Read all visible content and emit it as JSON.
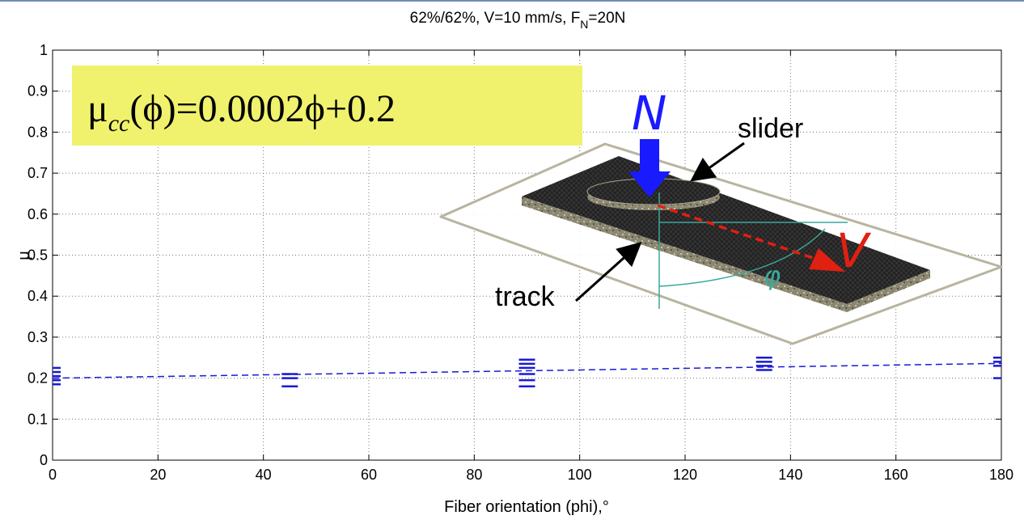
{
  "chart_data": {
    "type": "scatter",
    "title_main": "62%/62%, V=10 mm/s, F",
    "title_sub": "N",
    "title_tail": "=20N",
    "xlabel": "Fiber orientation (phi),°",
    "ylabel": "μ",
    "xlim": [
      0,
      180
    ],
    "ylim": [
      0,
      1
    ],
    "xticks": [
      "0",
      "20",
      "40",
      "60",
      "80",
      "100",
      "120",
      "140",
      "160",
      "180"
    ],
    "yticks": [
      "0",
      "0.1",
      "0.2",
      "0.3",
      "0.4",
      "0.5",
      "0.6",
      "0.7",
      "0.8",
      "0.9",
      "1"
    ],
    "grid": true,
    "series": [
      {
        "color": "#1a1ad6",
        "points": [
          {
            "x": 0,
            "y": 0.185
          },
          {
            "x": 0,
            "y": 0.195
          },
          {
            "x": 0,
            "y": 0.205
          },
          {
            "x": 0,
            "y": 0.215
          },
          {
            "x": 0,
            "y": 0.225
          },
          {
            "x": 45,
            "y": 0.18
          },
          {
            "x": 45,
            "y": 0.2
          },
          {
            "x": 45,
            "y": 0.21
          },
          {
            "x": 90,
            "y": 0.18
          },
          {
            "x": 90,
            "y": 0.195
          },
          {
            "x": 90,
            "y": 0.21
          },
          {
            "x": 90,
            "y": 0.225
          },
          {
            "x": 90,
            "y": 0.235
          },
          {
            "x": 90,
            "y": 0.245
          },
          {
            "x": 135,
            "y": 0.22
          },
          {
            "x": 135,
            "y": 0.23
          },
          {
            "x": 135,
            "y": 0.24
          },
          {
            "x": 135,
            "y": 0.25
          },
          {
            "x": 180,
            "y": 0.2
          },
          {
            "x": 180,
            "y": 0.23
          },
          {
            "x": 180,
            "y": 0.24
          },
          {
            "x": 180,
            "y": 0.25
          }
        ]
      },
      {
        "type": "line",
        "style": "dashed",
        "color": "#1a1ad6",
        "x": [
          0,
          180
        ],
        "y": [
          0.2,
          0.236
        ]
      }
    ],
    "annotation": {
      "equation_mu": "μ",
      "equation_sub": "cc",
      "equation_rest": "(ϕ)=0.0002ϕ+0.2",
      "box_color": "#f0f26e"
    },
    "inset": {
      "label_N": "N",
      "label_slider": "slider",
      "label_track": "track",
      "label_V": "V",
      "label_phi": "φ",
      "colors": {
        "N": "#1a1aff",
        "V": "#e02010",
        "phi": "#3aa89a"
      }
    }
  }
}
